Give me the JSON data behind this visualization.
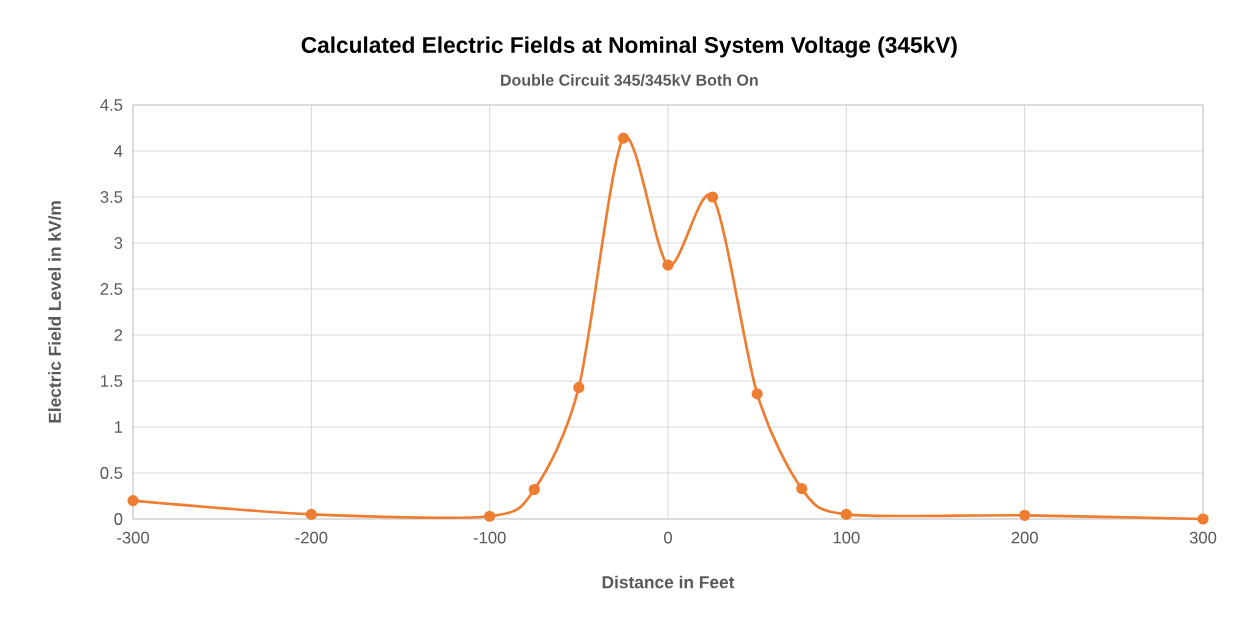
{
  "chart_data": {
    "type": "line",
    "title": "Calculated Electric Fields at Nominal System Voltage (345kV)",
    "subtitle": "Double Circuit 345/345kV Both On",
    "xlabel": "Distance in Feet",
    "ylabel": "Electric Field Level in kV/m",
    "x": [
      -300,
      -200,
      -100,
      -75,
      -50,
      -25,
      0,
      25,
      50,
      75,
      100,
      200,
      300
    ],
    "series": [
      {
        "color": "#ed7d31",
        "values": [
          0.2,
          0.05,
          0.03,
          0.32,
          1.43,
          4.14,
          2.76,
          3.5,
          1.36,
          0.33,
          0.05,
          0.04,
          0
        ]
      }
    ],
    "xlim": [
      -300,
      300
    ],
    "xticks": [
      -300,
      -200,
      -100,
      0,
      100,
      200,
      300
    ],
    "ylim": [
      0,
      4.5
    ],
    "yticks": [
      0,
      0.5,
      1,
      1.5,
      2,
      2.5,
      3,
      3.5,
      4,
      4.5
    ],
    "grid": true,
    "marker": "circle",
    "line_style": "solid"
  }
}
